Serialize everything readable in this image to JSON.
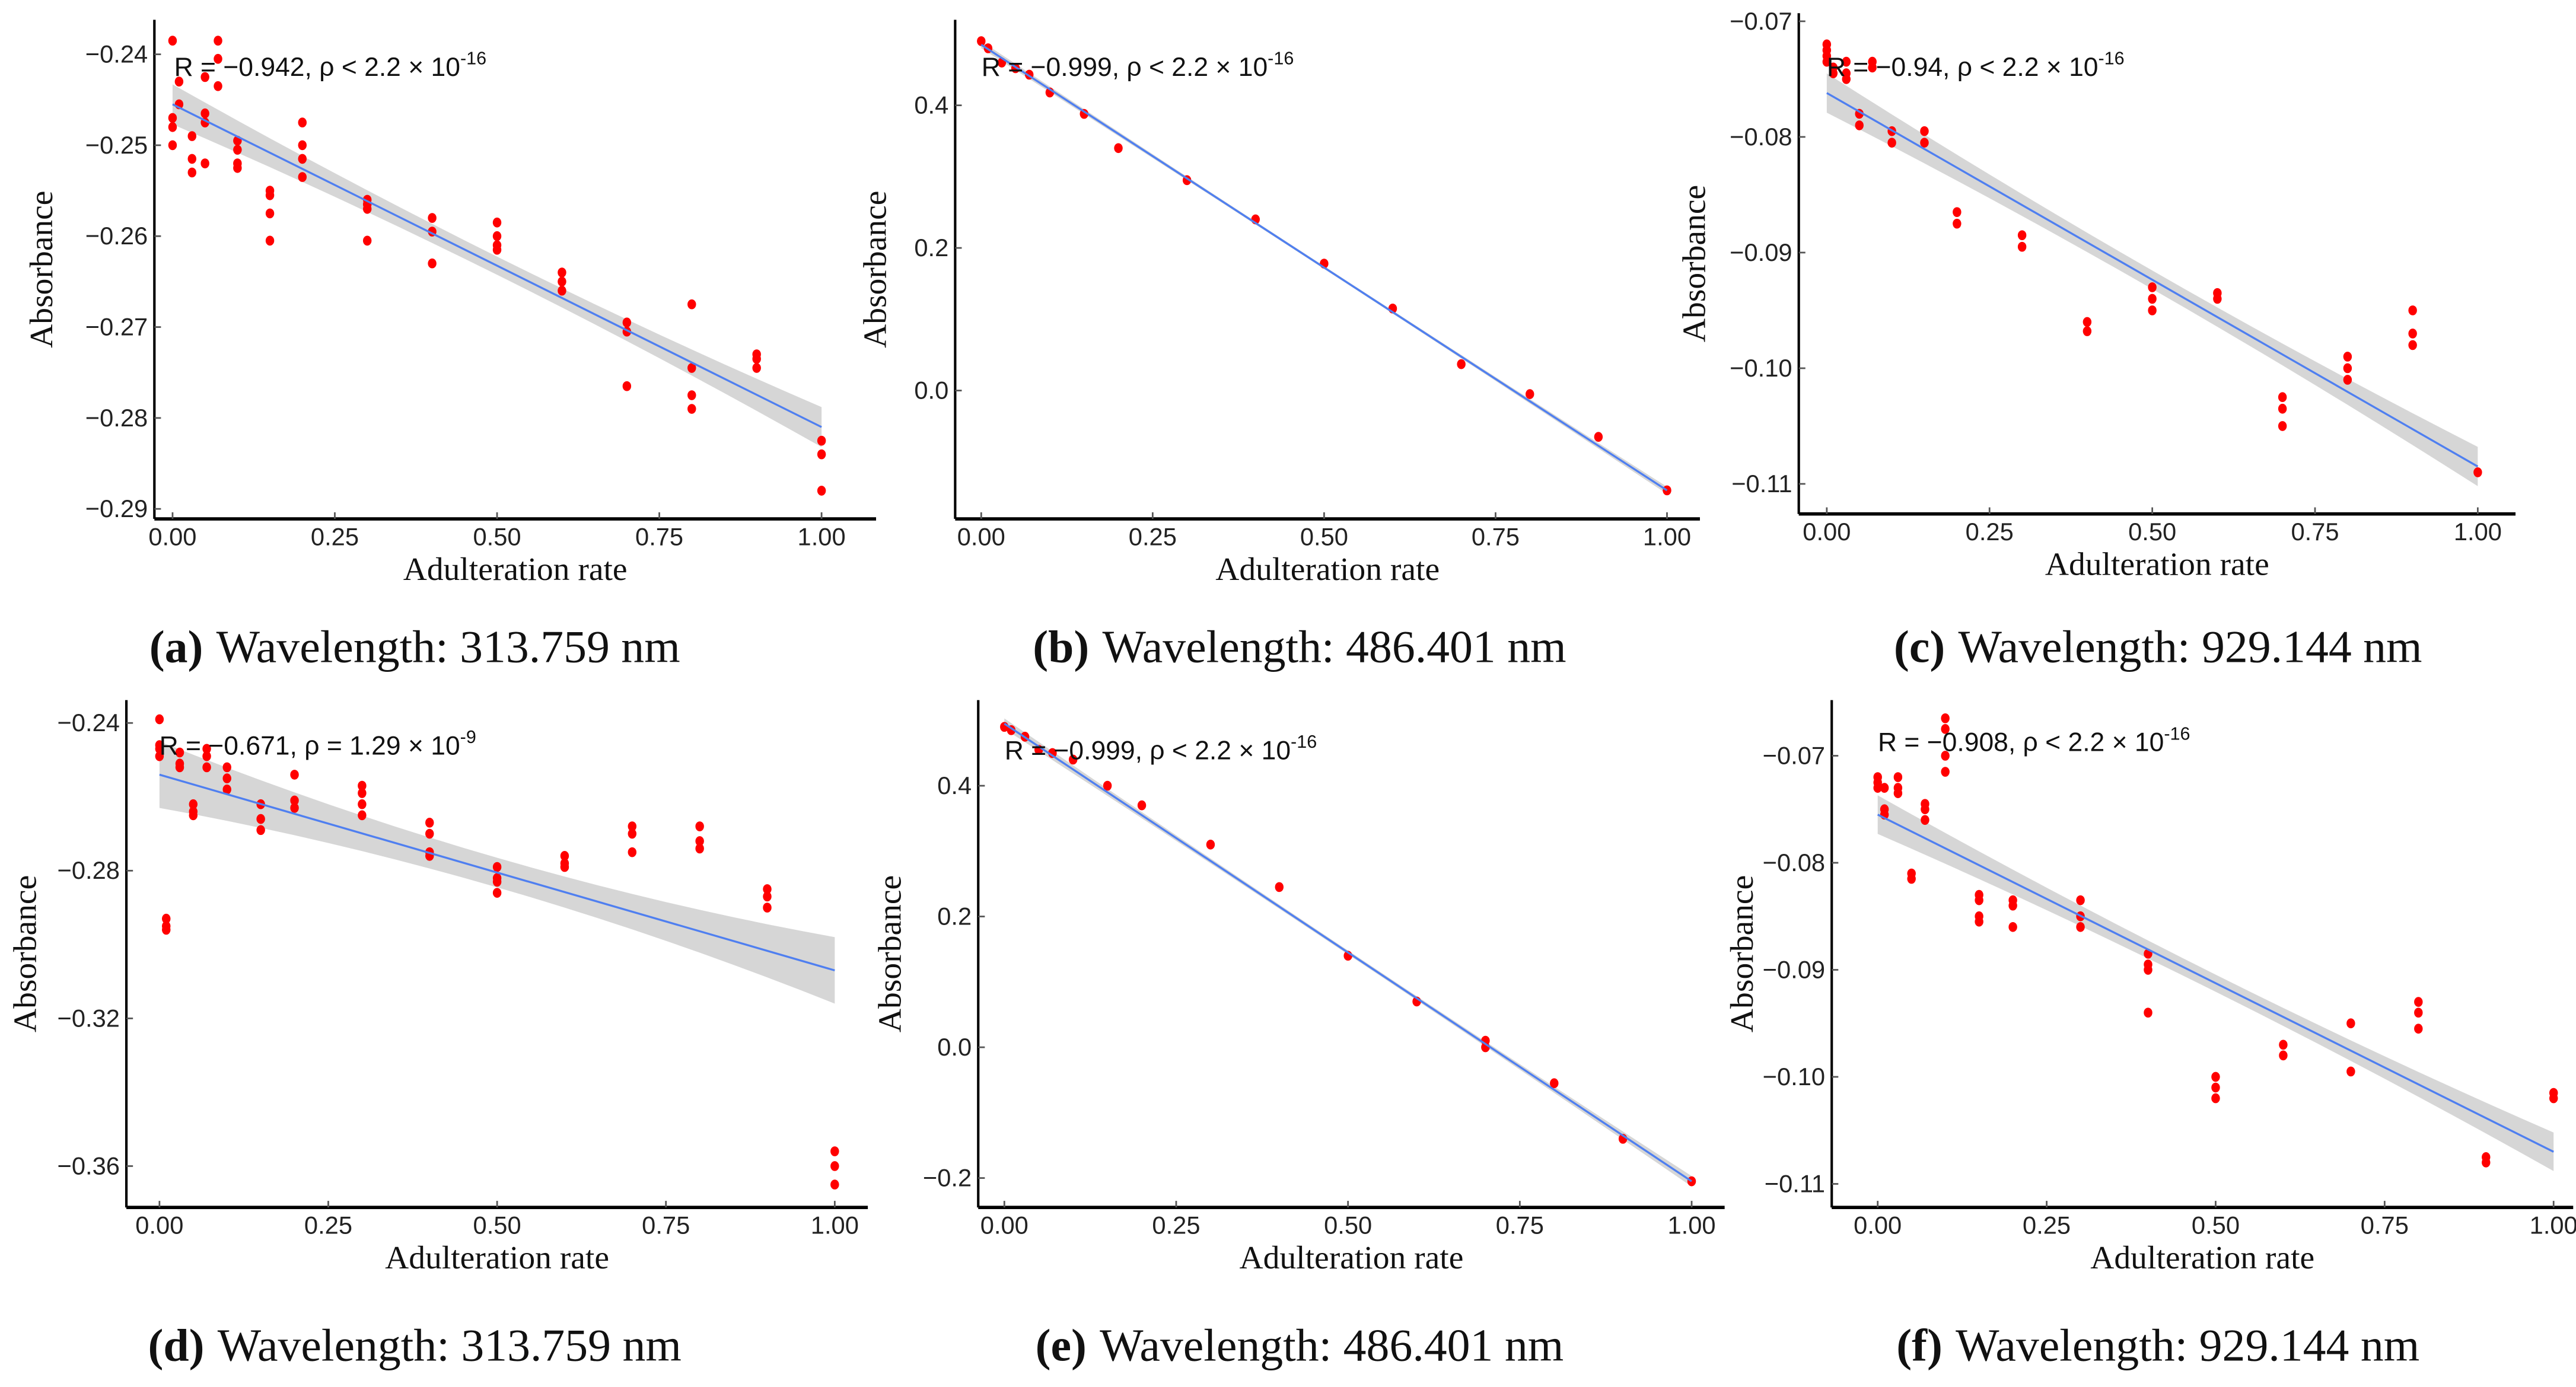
{
  "colors": {
    "points": "#ff0000",
    "line": "#4f7ff0",
    "band": "#cfcfcf",
    "axis": "#000000"
  },
  "chart_data": [
    {
      "type": "scatter",
      "panel": "a",
      "caption_label": "(a)",
      "caption_text": "Wavelength: 313.759 nm",
      "xlabel": "Adulteration rate",
      "ylabel": "Absorbance",
      "xticks": [
        0,
        0.25,
        0.5,
        0.75,
        1
      ],
      "xtick_labels": [
        "0.00",
        "0.25",
        "0.50",
        "0.75",
        "1.00"
      ],
      "yticks": [
        -0.24,
        -0.25,
        -0.26,
        -0.27,
        -0.28,
        -0.29
      ],
      "ytick_labels": [
        "−0.24",
        "−0.25",
        "−0.26",
        "−0.27",
        "−0.28",
        "−0.29"
      ],
      "xlim": [
        -0.028,
        1.084
      ],
      "ylim": [
        -0.2911,
        -0.2362
      ],
      "annotation": {
        "main": "R = −0.942, ρ < 2.2 × 10",
        "exp": "-16"
      },
      "fit": {
        "y_at_0": -0.2455,
        "y_at_1": -0.281,
        "ci_halfwidth_end": 0.0022,
        "ci_halfwidth_mid": 0.001
      },
      "groups": [
        {
          "x": 0,
          "y": [
            -0.2385,
            -0.247,
            -0.248,
            -0.25
          ]
        },
        {
          "x": 0.01,
          "y": [
            -0.243,
            -0.2455
          ]
        },
        {
          "x": 0.03,
          "y": [
            -0.249,
            -0.2515,
            -0.253
          ]
        },
        {
          "x": 0.05,
          "y": [
            -0.2425,
            -0.2465,
            -0.2475,
            -0.252
          ]
        },
        {
          "x": 0.07,
          "y": [
            -0.2385,
            -0.2405,
            -0.2435
          ]
        },
        {
          "x": 0.1,
          "y": [
            -0.2495,
            -0.2505,
            -0.252,
            -0.2525
          ]
        },
        {
          "x": 0.15,
          "y": [
            -0.255,
            -0.2555,
            -0.2575,
            -0.2605
          ]
        },
        {
          "x": 0.2,
          "y": [
            -0.2475,
            -0.25,
            -0.2515,
            -0.2535
          ]
        },
        {
          "x": 0.3,
          "y": [
            -0.256,
            -0.2565,
            -0.257,
            -0.2605
          ]
        },
        {
          "x": 0.4,
          "y": [
            -0.258,
            -0.2595,
            -0.263
          ]
        },
        {
          "x": 0.5,
          "y": [
            -0.2585,
            -0.26,
            -0.261,
            -0.2615
          ]
        },
        {
          "x": 0.6,
          "y": [
            -0.264,
            -0.265,
            -0.266
          ]
        },
        {
          "x": 0.7,
          "y": [
            -0.2695,
            -0.2705,
            -0.2765
          ]
        },
        {
          "x": 0.8,
          "y": [
            -0.2675,
            -0.2745,
            -0.2775,
            -0.279
          ]
        },
        {
          "x": 0.9,
          "y": [
            -0.273,
            -0.2735,
            -0.2745
          ]
        },
        {
          "x": 1,
          "y": [
            -0.2825,
            -0.284,
            -0.288
          ]
        }
      ]
    },
    {
      "type": "scatter",
      "panel": "b",
      "caption_label": "(b)",
      "caption_text": "Wavelength: 486.401 nm",
      "xlabel": "Adulteration rate",
      "ylabel": "Absorbance",
      "xticks": [
        0,
        0.25,
        0.5,
        0.75,
        1
      ],
      "xtick_labels": [
        "0.00",
        "0.25",
        "0.50",
        "0.75",
        "1.00"
      ],
      "yticks": [
        0.4,
        0.2,
        0.0
      ],
      "ytick_labels": [
        "0.4",
        "0.2",
        "0.0"
      ],
      "xlim": [
        -0.038,
        1.048
      ],
      "ylim": [
        -0.18,
        0.52
      ],
      "annotation": {
        "main": "R = −0.999, ρ < 2.2 × 10",
        "exp": "-16"
      },
      "fit": {
        "y_at_0": 0.485,
        "y_at_1": -0.14,
        "ci_halfwidth_end": 0.005,
        "ci_halfwidth_mid": 0.002
      },
      "groups": [
        {
          "x": 0,
          "y": [
            0.49
          ]
        },
        {
          "x": 0.01,
          "y": [
            0.48
          ]
        },
        {
          "x": 0.03,
          "y": [
            0.46
          ]
        },
        {
          "x": 0.05,
          "y": [
            0.452
          ]
        },
        {
          "x": 0.07,
          "y": [
            0.443
          ]
        },
        {
          "x": 0.1,
          "y": [
            0.418
          ]
        },
        {
          "x": 0.15,
          "y": [
            0.388
          ]
        },
        {
          "x": 0.2,
          "y": [
            0.34
          ]
        },
        {
          "x": 0.3,
          "y": [
            0.295
          ]
        },
        {
          "x": 0.4,
          "y": [
            0.24
          ]
        },
        {
          "x": 0.5,
          "y": [
            0.178
          ]
        },
        {
          "x": 0.6,
          "y": [
            0.115
          ]
        },
        {
          "x": 0.7,
          "y": [
            0.037
          ]
        },
        {
          "x": 0.8,
          "y": [
            -0.005
          ]
        },
        {
          "x": 0.9,
          "y": [
            -0.065
          ]
        },
        {
          "x": 1,
          "y": [
            -0.14
          ]
        }
      ]
    },
    {
      "type": "scatter",
      "panel": "c",
      "caption_label": "(c)",
      "caption_text": "Wavelength: 929.144 nm",
      "xlabel": "Adulteration rate",
      "ylabel": "Absorbance",
      "xticks": [
        0,
        0.25,
        0.5,
        0.75,
        1
      ],
      "xtick_labels": [
        "0.00",
        "0.25",
        "0.50",
        "0.75",
        "1.00"
      ],
      "yticks": [
        -0.07,
        -0.08,
        -0.09,
        -0.1,
        -0.11
      ],
      "ytick_labels": [
        "−0.07",
        "−0.08",
        "−0.09",
        "−0.10",
        "−0.11"
      ],
      "xlim": [
        -0.043,
        1.058
      ],
      "ylim": [
        -0.1126,
        -0.0693
      ],
      "annotation": {
        "main": "R = −0.94, ρ < 2.2 × 10",
        "exp": "-16"
      },
      "fit": {
        "y_at_0": -0.0762,
        "y_at_1": -0.1085,
        "ci_halfwidth_end": 0.0017,
        "ci_halfwidth_mid": 0.0008
      },
      "groups": [
        {
          "x": 0,
          "y": [
            -0.072,
            -0.0725,
            -0.073,
            -0.0735
          ]
        },
        {
          "x": 0.01,
          "y": [
            -0.074,
            -0.0745
          ]
        },
        {
          "x": 0.03,
          "y": [
            -0.0735,
            -0.0745,
            -0.075
          ]
        },
        {
          "x": 0.05,
          "y": [
            -0.078,
            -0.079
          ]
        },
        {
          "x": 0.07,
          "y": [
            -0.0735,
            -0.074
          ]
        },
        {
          "x": 0.1,
          "y": [
            -0.0795,
            -0.0805
          ]
        },
        {
          "x": 0.15,
          "y": [
            -0.0795,
            -0.0805
          ]
        },
        {
          "x": 0.2,
          "y": [
            -0.0865,
            -0.0875
          ]
        },
        {
          "x": 0.3,
          "y": [
            -0.0885,
            -0.0895
          ]
        },
        {
          "x": 0.4,
          "y": [
            -0.096,
            -0.0968
          ]
        },
        {
          "x": 0.5,
          "y": [
            -0.093,
            -0.094,
            -0.095
          ]
        },
        {
          "x": 0.6,
          "y": [
            -0.0935,
            -0.094
          ]
        },
        {
          "x": 0.7,
          "y": [
            -0.1025,
            -0.1035,
            -0.105
          ]
        },
        {
          "x": 0.8,
          "y": [
            -0.099,
            -0.1,
            -0.101
          ]
        },
        {
          "x": 0.9,
          "y": [
            -0.095,
            -0.097,
            -0.098
          ]
        },
        {
          "x": 1,
          "y": [
            -0.109
          ]
        }
      ]
    },
    {
      "type": "scatter",
      "panel": "d",
      "caption_label": "(d)",
      "caption_text": "Wavelength: 313.759 nm",
      "xlabel": "Adulteration rate",
      "ylabel": "Absorbance",
      "xticks": [
        0,
        0.25,
        0.5,
        0.75,
        1
      ],
      "xtick_labels": [
        "0.00",
        "0.25",
        "0.50",
        "0.75",
        "1.00"
      ],
      "yticks": [
        -0.24,
        -0.28,
        -0.32,
        -0.36
      ],
      "ytick_labels": [
        "−0.24",
        "−0.28",
        "−0.32",
        "−0.36"
      ],
      "xlim": [
        -0.049,
        1.049
      ],
      "ylim": [
        -0.3712,
        -0.2338
      ],
      "annotation": {
        "main": "R = −0.671, ρ = 1.29 × 10",
        "exp": "-9"
      },
      "fit": {
        "y_at_0": -0.254,
        "y_at_1": -0.307,
        "ci_halfwidth_end": 0.009,
        "ci_halfwidth_mid": 0.004
      },
      "groups": [
        {
          "x": 0,
          "y": [
            -0.239,
            -0.246,
            -0.247,
            -0.249
          ]
        },
        {
          "x": 0.01,
          "y": [
            -0.293,
            -0.295,
            -0.296
          ]
        },
        {
          "x": 0.03,
          "y": [
            -0.248,
            -0.251,
            -0.252
          ]
        },
        {
          "x": 0.05,
          "y": [
            -0.262,
            -0.264,
            -0.265
          ]
        },
        {
          "x": 0.07,
          "y": [
            -0.247,
            -0.249,
            -0.252
          ]
        },
        {
          "x": 0.1,
          "y": [
            -0.252,
            -0.255,
            -0.258
          ]
        },
        {
          "x": 0.15,
          "y": [
            -0.262,
            -0.266,
            -0.269
          ]
        },
        {
          "x": 0.2,
          "y": [
            -0.254,
            -0.261,
            -0.263
          ]
        },
        {
          "x": 0.3,
          "y": [
            -0.257,
            -0.259,
            -0.262,
            -0.265
          ]
        },
        {
          "x": 0.4,
          "y": [
            -0.267,
            -0.27,
            -0.275,
            -0.276
          ]
        },
        {
          "x": 0.5,
          "y": [
            -0.279,
            -0.282,
            -0.283,
            -0.286
          ]
        },
        {
          "x": 0.6,
          "y": [
            -0.276,
            -0.278,
            -0.279
          ]
        },
        {
          "x": 0.7,
          "y": [
            -0.268,
            -0.27,
            -0.275
          ]
        },
        {
          "x": 0.8,
          "y": [
            -0.268,
            -0.272,
            -0.274
          ]
        },
        {
          "x": 0.9,
          "y": [
            -0.285,
            -0.287,
            -0.29
          ]
        },
        {
          "x": 1,
          "y": [
            -0.356,
            -0.36,
            -0.365
          ]
        }
      ]
    },
    {
      "type": "scatter",
      "panel": "e",
      "caption_label": "(e)",
      "caption_text": "Wavelength: 486.401 nm",
      "xlabel": "Adulteration rate",
      "ylabel": "Absorbance",
      "xticks": [
        0,
        0.25,
        0.5,
        0.75,
        1
      ],
      "xtick_labels": [
        "0.00",
        "0.25",
        "0.50",
        "0.75",
        "1.00"
      ],
      "yticks": [
        0.4,
        0.2,
        0.0,
        -0.2
      ],
      "ytick_labels": [
        "0.4",
        "0.2",
        "0.0",
        "−0.2"
      ],
      "xlim": [
        -0.038,
        1.048
      ],
      "ylim": [
        -0.245,
        0.531
      ],
      "annotation": {
        "main": "R = −0.999, ρ < 2.2 × 10",
        "exp": "-16"
      },
      "fit": {
        "y_at_0": 0.495,
        "y_at_1": -0.205,
        "ci_halfwidth_end": 0.008,
        "ci_halfwidth_mid": 0.003
      },
      "groups": [
        {
          "x": 0,
          "y": [
            0.49
          ]
        },
        {
          "x": 0.01,
          "y": [
            0.485
          ]
        },
        {
          "x": 0.03,
          "y": [
            0.475
          ]
        },
        {
          "x": 0.05,
          "y": [
            0.455
          ]
        },
        {
          "x": 0.07,
          "y": [
            0.45
          ]
        },
        {
          "x": 0.1,
          "y": [
            0.44
          ]
        },
        {
          "x": 0.15,
          "y": [
            0.4
          ]
        },
        {
          "x": 0.2,
          "y": [
            0.37
          ]
        },
        {
          "x": 0.3,
          "y": [
            0.31
          ]
        },
        {
          "x": 0.4,
          "y": [
            0.245
          ]
        },
        {
          "x": 0.5,
          "y": [
            0.14
          ]
        },
        {
          "x": 0.6,
          "y": [
            0.07
          ]
        },
        {
          "x": 0.7,
          "y": [
            0.01,
            0.0
          ]
        },
        {
          "x": 0.8,
          "y": [
            -0.055
          ]
        },
        {
          "x": 0.9,
          "y": [
            -0.14
          ]
        },
        {
          "x": 1,
          "y": [
            -0.205
          ]
        }
      ]
    },
    {
      "type": "scatter",
      "panel": "f",
      "caption_label": "(f)",
      "caption_text": "Wavelength: 929.144 nm",
      "xlabel": "Adulteration rate",
      "ylabel": "Absorbance",
      "xticks": [
        0,
        0.25,
        0.5,
        0.75,
        1
      ],
      "xtick_labels": [
        "0.00",
        "0.25",
        "0.50",
        "0.75",
        "1.00"
      ],
      "yticks": [
        -0.07,
        -0.08,
        -0.09,
        -0.1,
        -0.11
      ],
      "ytick_labels": [
        "−0.07",
        "−0.08",
        "−0.09",
        "−0.10",
        "−0.11"
      ],
      "xlim": [
        -0.068,
        1.029
      ],
      "ylim": [
        -0.1122,
        -0.0648
      ],
      "annotation": {
        "main": "R = −0.908, ρ < 2.2 × 10",
        "exp": "-16"
      },
      "fit": {
        "y_at_0": -0.0755,
        "y_at_1": -0.107,
        "ci_halfwidth_end": 0.0018,
        "ci_halfwidth_mid": 0.0008
      },
      "groups": [
        {
          "x": 0,
          "y": [
            -0.072,
            -0.0725,
            -0.073
          ]
        },
        {
          "x": 0.01,
          "y": [
            -0.073,
            -0.075,
            -0.0755
          ]
        },
        {
          "x": 0.03,
          "y": [
            -0.072,
            -0.073,
            -0.0735
          ]
        },
        {
          "x": 0.05,
          "y": [
            -0.081,
            -0.0815
          ]
        },
        {
          "x": 0.07,
          "y": [
            -0.0745,
            -0.075,
            -0.076
          ]
        },
        {
          "x": 0.1,
          "y": [
            -0.0665,
            -0.0675,
            -0.07,
            -0.0715
          ]
        },
        {
          "x": 0.15,
          "y": [
            -0.083,
            -0.0835,
            -0.085,
            -0.0855
          ]
        },
        {
          "x": 0.2,
          "y": [
            -0.0835,
            -0.084,
            -0.086
          ]
        },
        {
          "x": 0.3,
          "y": [
            -0.0835,
            -0.085,
            -0.086
          ]
        },
        {
          "x": 0.4,
          "y": [
            -0.0885,
            -0.0895,
            -0.09,
            -0.094
          ]
        },
        {
          "x": 0.5,
          "y": [
            -0.1,
            -0.101,
            -0.102
          ]
        },
        {
          "x": 0.6,
          "y": [
            -0.097,
            -0.098
          ]
        },
        {
          "x": 0.7,
          "y": [
            -0.095,
            -0.0995
          ]
        },
        {
          "x": 0.8,
          "y": [
            -0.093,
            -0.094,
            -0.0955
          ]
        },
        {
          "x": 0.9,
          "y": [
            -0.1075,
            -0.108
          ]
        },
        {
          "x": 1,
          "y": [
            -0.1015,
            -0.102
          ]
        }
      ]
    }
  ]
}
